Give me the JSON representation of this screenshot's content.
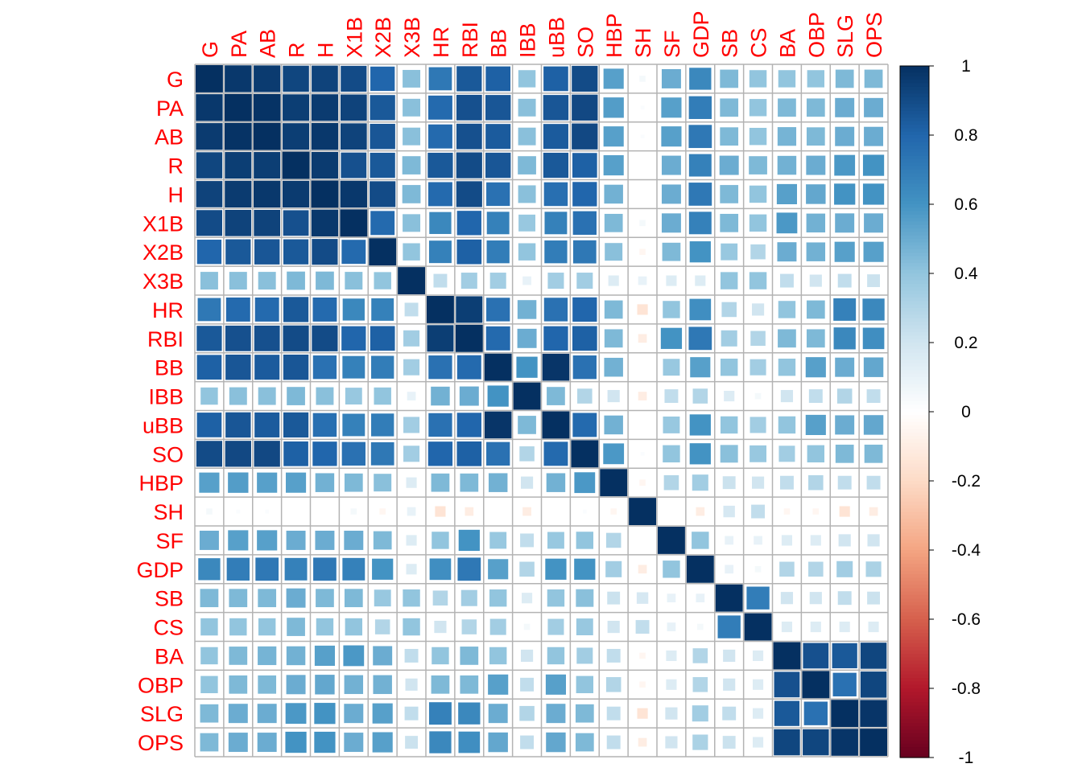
{
  "chart_data": {
    "type": "heatmap",
    "title": "",
    "variables": [
      "G",
      "PA",
      "AB",
      "R",
      "H",
      "X1B",
      "X2B",
      "X3B",
      "HR",
      "RBI",
      "BB",
      "IBB",
      "uBB",
      "SO",
      "HBP",
      "SH",
      "SF",
      "GDP",
      "SB",
      "CS",
      "BA",
      "OBP",
      "SLG",
      "OPS"
    ],
    "matrix": [
      [
        1.0,
        0.97,
        0.96,
        0.92,
        0.93,
        0.9,
        0.8,
        0.42,
        0.72,
        0.85,
        0.82,
        0.4,
        0.82,
        0.9,
        0.55,
        0.05,
        0.5,
        0.65,
        0.45,
        0.4,
        0.4,
        0.4,
        0.45,
        0.45
      ],
      [
        0.97,
        1.0,
        0.99,
        0.95,
        0.96,
        0.93,
        0.85,
        0.42,
        0.78,
        0.88,
        0.86,
        0.42,
        0.86,
        0.91,
        0.56,
        0.02,
        0.55,
        0.7,
        0.45,
        0.4,
        0.45,
        0.45,
        0.5,
        0.5
      ],
      [
        0.96,
        0.99,
        1.0,
        0.95,
        0.97,
        0.93,
        0.86,
        0.42,
        0.78,
        0.88,
        0.84,
        0.42,
        0.84,
        0.91,
        0.55,
        0.02,
        0.55,
        0.72,
        0.45,
        0.4,
        0.47,
        0.45,
        0.5,
        0.5
      ],
      [
        0.92,
        0.95,
        0.95,
        1.0,
        0.96,
        0.88,
        0.85,
        0.45,
        0.85,
        0.9,
        0.86,
        0.45,
        0.85,
        0.82,
        0.55,
        0.0,
        0.5,
        0.68,
        0.5,
        0.45,
        0.48,
        0.5,
        0.58,
        0.6
      ],
      [
        0.93,
        0.96,
        0.97,
        0.96,
        1.0,
        0.97,
        0.9,
        0.45,
        0.78,
        0.9,
        0.75,
        0.42,
        0.76,
        0.8,
        0.48,
        0.0,
        0.5,
        0.72,
        0.45,
        0.4,
        0.55,
        0.52,
        0.6,
        0.6
      ],
      [
        0.9,
        0.93,
        0.93,
        0.88,
        0.97,
        1.0,
        0.78,
        0.42,
        0.65,
        0.8,
        0.68,
        0.38,
        0.68,
        0.75,
        0.45,
        0.05,
        0.5,
        0.68,
        0.45,
        0.4,
        0.58,
        0.48,
        0.5,
        0.5
      ],
      [
        0.8,
        0.85,
        0.86,
        0.85,
        0.9,
        0.78,
        1.0,
        0.4,
        0.68,
        0.82,
        0.7,
        0.4,
        0.7,
        0.72,
        0.42,
        -0.05,
        0.45,
        0.6,
        0.38,
        0.3,
        0.5,
        0.48,
        0.55,
        0.55
      ],
      [
        0.42,
        0.42,
        0.42,
        0.45,
        0.45,
        0.42,
        0.4,
        1.0,
        0.25,
        0.35,
        0.35,
        0.1,
        0.35,
        0.35,
        0.15,
        0.1,
        0.15,
        0.15,
        0.4,
        0.4,
        0.25,
        0.2,
        0.25,
        0.22
      ],
      [
        0.72,
        0.78,
        0.78,
        0.85,
        0.78,
        0.65,
        0.68,
        0.25,
        1.0,
        0.95,
        0.75,
        0.48,
        0.75,
        0.8,
        0.45,
        -0.15,
        0.4,
        0.62,
        0.3,
        0.2,
        0.4,
        0.45,
        0.68,
        0.65
      ],
      [
        0.85,
        0.88,
        0.88,
        0.9,
        0.9,
        0.8,
        0.82,
        0.35,
        0.95,
        1.0,
        0.78,
        0.5,
        0.8,
        0.82,
        0.45,
        -0.1,
        0.6,
        0.72,
        0.35,
        0.3,
        0.45,
        0.45,
        0.65,
        0.62
      ],
      [
        0.82,
        0.86,
        0.84,
        0.86,
        0.75,
        0.68,
        0.7,
        0.35,
        0.75,
        0.78,
        1.0,
        0.6,
        0.98,
        0.75,
        0.48,
        0.0,
        0.38,
        0.55,
        0.4,
        0.35,
        0.4,
        0.55,
        0.5,
        0.52
      ],
      [
        0.4,
        0.42,
        0.42,
        0.45,
        0.42,
        0.38,
        0.4,
        0.1,
        0.48,
        0.5,
        0.6,
        1.0,
        0.45,
        0.3,
        0.2,
        -0.1,
        0.25,
        0.3,
        0.15,
        0.05,
        0.2,
        0.25,
        0.3,
        0.25
      ],
      [
        0.82,
        0.86,
        0.84,
        0.85,
        0.76,
        0.68,
        0.7,
        0.35,
        0.75,
        0.8,
        0.98,
        0.45,
        1.0,
        0.78,
        0.48,
        0.0,
        0.38,
        0.6,
        0.4,
        0.35,
        0.4,
        0.55,
        0.5,
        0.52
      ],
      [
        0.9,
        0.91,
        0.91,
        0.82,
        0.8,
        0.75,
        0.72,
        0.35,
        0.8,
        0.82,
        0.75,
        0.3,
        0.78,
        1.0,
        0.58,
        0.02,
        0.4,
        0.6,
        0.42,
        0.38,
        0.35,
        0.4,
        0.45,
        0.45
      ],
      [
        0.55,
        0.56,
        0.55,
        0.55,
        0.48,
        0.45,
        0.42,
        0.15,
        0.45,
        0.45,
        0.48,
        0.2,
        0.48,
        0.58,
        1.0,
        -0.05,
        0.3,
        0.35,
        0.22,
        0.2,
        0.25,
        0.3,
        0.25,
        0.25
      ],
      [
        0.05,
        0.02,
        0.02,
        0.0,
        0.0,
        0.05,
        -0.05,
        0.1,
        -0.15,
        -0.1,
        0.0,
        -0.1,
        0.0,
        0.02,
        -0.05,
        1.0,
        0.0,
        -0.1,
        0.18,
        0.25,
        -0.05,
        -0.05,
        -0.15,
        -0.1
      ],
      [
        0.5,
        0.55,
        0.55,
        0.5,
        0.5,
        0.5,
        0.45,
        0.15,
        0.4,
        0.6,
        0.38,
        0.25,
        0.38,
        0.4,
        0.3,
        0.0,
        1.0,
        0.4,
        0.1,
        0.1,
        0.15,
        0.15,
        0.2,
        0.2
      ],
      [
        0.65,
        0.7,
        0.72,
        0.68,
        0.72,
        0.68,
        0.6,
        0.15,
        0.62,
        0.72,
        0.55,
        0.3,
        0.6,
        0.6,
        0.35,
        -0.1,
        0.4,
        1.0,
        0.1,
        0.05,
        0.3,
        0.3,
        0.35,
        0.32
      ],
      [
        0.45,
        0.45,
        0.45,
        0.5,
        0.45,
        0.45,
        0.38,
        0.4,
        0.3,
        0.35,
        0.4,
        0.15,
        0.4,
        0.42,
        0.22,
        0.18,
        0.1,
        0.1,
        1.0,
        0.7,
        0.2,
        0.2,
        0.25,
        0.22
      ],
      [
        0.4,
        0.4,
        0.4,
        0.45,
        0.4,
        0.4,
        0.3,
        0.4,
        0.2,
        0.3,
        0.35,
        0.05,
        0.35,
        0.38,
        0.2,
        0.25,
        0.1,
        0.05,
        0.7,
        1.0,
        0.15,
        0.15,
        0.15,
        0.15
      ],
      [
        0.4,
        0.45,
        0.47,
        0.48,
        0.55,
        0.58,
        0.5,
        0.25,
        0.4,
        0.45,
        0.4,
        0.2,
        0.4,
        0.35,
        0.25,
        -0.05,
        0.15,
        0.3,
        0.2,
        0.15,
        1.0,
        0.88,
        0.85,
        0.92
      ],
      [
        0.4,
        0.45,
        0.45,
        0.5,
        0.52,
        0.48,
        0.48,
        0.2,
        0.45,
        0.45,
        0.55,
        0.25,
        0.55,
        0.4,
        0.3,
        -0.05,
        0.15,
        0.3,
        0.2,
        0.15,
        0.88,
        1.0,
        0.75,
        0.92
      ],
      [
        0.45,
        0.5,
        0.5,
        0.58,
        0.6,
        0.5,
        0.55,
        0.25,
        0.68,
        0.65,
        0.5,
        0.3,
        0.5,
        0.45,
        0.25,
        -0.15,
        0.2,
        0.35,
        0.25,
        0.15,
        0.85,
        0.75,
        1.0,
        0.98
      ],
      [
        0.45,
        0.5,
        0.5,
        0.6,
        0.6,
        0.5,
        0.55,
        0.22,
        0.65,
        0.62,
        0.52,
        0.25,
        0.52,
        0.45,
        0.25,
        -0.1,
        0.2,
        0.32,
        0.22,
        0.15,
        0.92,
        0.92,
        0.98,
        1.0
      ]
    ],
    "legend": {
      "range": [
        -1,
        1
      ],
      "placement": "right",
      "ticks": [
        {
          "value": 1,
          "label": "1"
        },
        {
          "value": 0.8,
          "label": "0.8"
        },
        {
          "value": 0.6,
          "label": "0.6"
        },
        {
          "value": 0.4,
          "label": "0.4"
        },
        {
          "value": 0.2,
          "label": "0.2"
        },
        {
          "value": 0,
          "label": "0"
        },
        {
          "value": -0.2,
          "label": "-0.2"
        },
        {
          "value": -0.4,
          "label": "-0.4"
        },
        {
          "value": -0.6,
          "label": "-0.6"
        },
        {
          "value": -0.8,
          "label": "-0.8"
        },
        {
          "value": -1,
          "label": "-1"
        }
      ]
    },
    "colors": {
      "label_color": "#ff0000",
      "grid_color": "#b3b3b3",
      "palette": [
        "#67001F",
        "#B2182B",
        "#D6604D",
        "#F4A582",
        "#FDDBC7",
        "#FFFFFF",
        "#D1E5F0",
        "#92C5DE",
        "#4393C3",
        "#2166AC",
        "#053061"
      ]
    },
    "grid": true
  }
}
